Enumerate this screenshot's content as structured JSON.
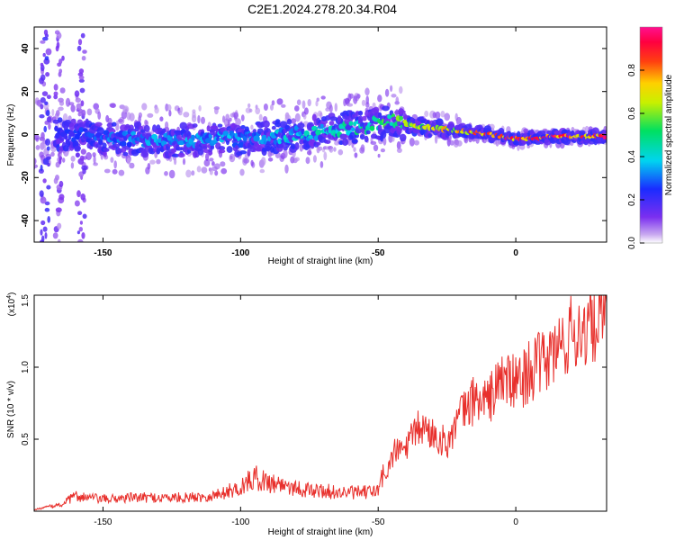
{
  "title": "C2E1.2024.278.20.34.R04",
  "chart_data": [
    {
      "type": "heatmap",
      "title": "C2E1.2024.278.20.34.R04",
      "xlabel": "Height of straight line (km)",
      "ylabel": "Frequency (Hz)",
      "xlim": [
        -175,
        33
      ],
      "ylim": [
        -50,
        50
      ],
      "xticks": [
        -150,
        -100,
        -50,
        0
      ],
      "yticks": [
        -40,
        -20,
        0,
        20,
        40
      ],
      "colorbar": {
        "label": "Normalized spectral amplitude",
        "range": [
          0,
          1
        ],
        "ticks": [
          "0.0",
          "0.2",
          "0.4",
          "0.6",
          "0.8"
        ],
        "colormap": "rainbow (purple-blue-cyan-green-yellow-red-magenta)"
      },
      "ridge": [
        {
          "x": -160,
          "freq": 0,
          "amp": 0.25
        },
        {
          "x": -150,
          "freq": -2,
          "amp": 0.3
        },
        {
          "x": -125,
          "freq": -3,
          "amp": 0.35
        },
        {
          "x": -100,
          "freq": -2,
          "amp": 0.35
        },
        {
          "x": -80,
          "freq": 0,
          "amp": 0.4
        },
        {
          "x": -60,
          "freq": 3,
          "amp": 0.45
        },
        {
          "x": -45,
          "freq": 6,
          "amp": 0.55
        },
        {
          "x": -30,
          "freq": 3,
          "amp": 0.7
        },
        {
          "x": -15,
          "freq": 1,
          "amp": 0.8
        },
        {
          "x": 0,
          "freq": -2,
          "amp": 0.9
        },
        {
          "x": 15,
          "freq": -1,
          "amp": 0.9
        },
        {
          "x": 33,
          "freq": -1,
          "amp": 0.9
        }
      ]
    },
    {
      "type": "line",
      "xlabel": "Height of straight line (km)",
      "ylabel": "SNR (10 * v/v)",
      "scale_label": "(x10",
      "scale_exponent": "4",
      "xlim": [
        -175,
        33
      ],
      "ylim": [
        0,
        1.5
      ],
      "xticks": [
        -150,
        -100,
        -50,
        0
      ],
      "yticks": [
        "0.5",
        "1.0",
        "1.5"
      ],
      "series": [
        {
          "color": "#e8302c",
          "x": [
            -175,
            -165,
            -160,
            -150,
            -140,
            -130,
            -120,
            -110,
            -100,
            -95,
            -90,
            -85,
            -80,
            -75,
            -70,
            -65,
            -60,
            -55,
            -50,
            -47,
            -44,
            -40,
            -35,
            -30,
            -25,
            -20,
            -15,
            -10,
            -5,
            0,
            5,
            10,
            15,
            20,
            25,
            30,
            33
          ],
          "y": [
            0.01,
            0.04,
            0.09,
            0.07,
            0.08,
            0.08,
            0.08,
            0.09,
            0.14,
            0.2,
            0.17,
            0.16,
            0.14,
            0.12,
            0.12,
            0.11,
            0.11,
            0.11,
            0.12,
            0.28,
            0.42,
            0.45,
            0.6,
            0.55,
            0.48,
            0.68,
            0.8,
            0.78,
            0.95,
            0.9,
            1.0,
            1.05,
            1.15,
            1.25,
            1.3,
            1.37,
            1.38
          ]
        }
      ]
    }
  ]
}
